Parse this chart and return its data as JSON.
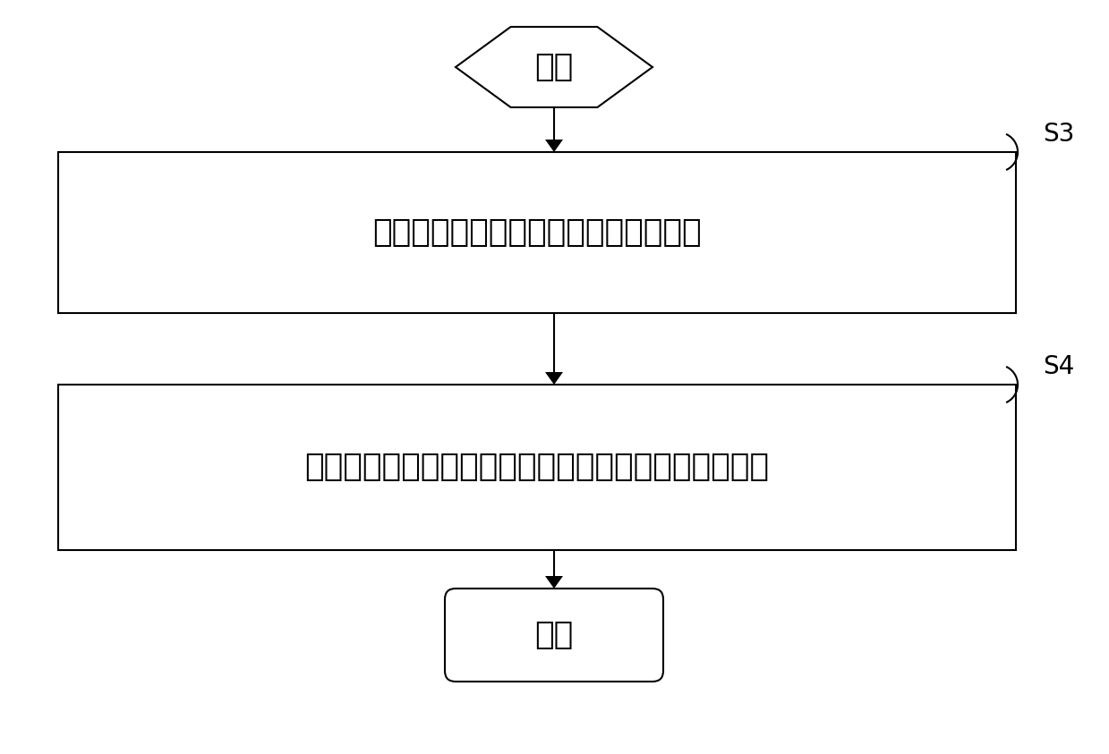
{
  "background_color": "#ffffff",
  "start_text": "开始",
  "end_text": "结束",
  "box1_text": "将脱水前的凝胶贴附于所述振膜的表面",
  "box2_text": "对凝胶进行脱水形成所述气凝胶贴合于所述振膜的表面",
  "label1": "S3",
  "label2": "S4",
  "line_color": "#000000",
  "text_color": "#000000",
  "font_size_box": 26,
  "font_size_terminal": 26,
  "font_size_label": 20,
  "fig_width": 12.39,
  "fig_height": 8.43,
  "dpi": 100
}
